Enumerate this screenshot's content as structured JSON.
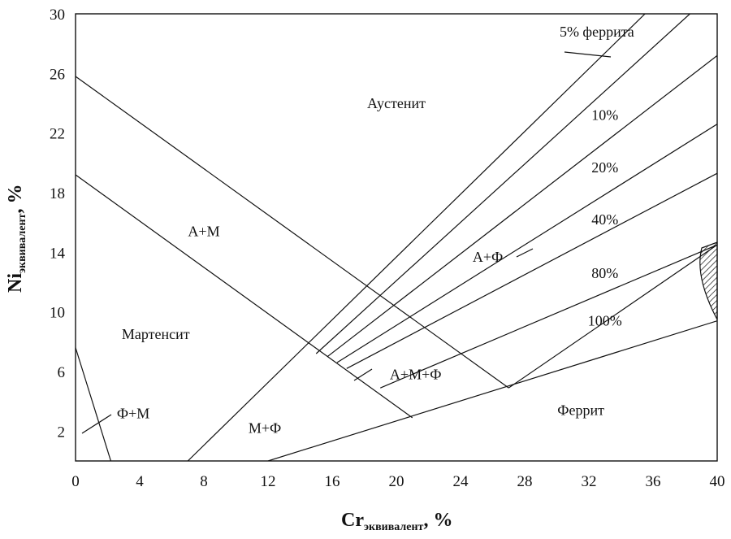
{
  "chart_data": {
    "type": "line",
    "title": "",
    "xlabel": {
      "main": "Cr",
      "sub": "эквивалент",
      "unit": ", %"
    },
    "ylabel": {
      "main": "Ni",
      "sub": "эквивалент",
      "unit": ", %"
    },
    "xlim": [
      0,
      40
    ],
    "ylim": [
      0,
      30
    ],
    "xticks": [
      "0",
      "4",
      "8",
      "12",
      "16",
      "20",
      "24",
      "28",
      "32",
      "36",
      "40"
    ],
    "yticks": [
      "2",
      "6",
      "10",
      "14",
      "18",
      "22",
      "26",
      "30"
    ],
    "grid": false,
    "boundaries": [
      {
        "name": "",
        "points": [
          [
            0,
            7.6
          ],
          [
            2.2,
            0
          ]
        ]
      },
      {
        "name": "",
        "points": [
          [
            0,
            25.8
          ],
          [
            27,
            4.9
          ]
        ]
      },
      {
        "name": "",
        "points": [
          [
            0,
            19.2
          ],
          [
            21,
            2.9
          ]
        ]
      },
      {
        "name": "",
        "points": [
          [
            7,
            0
          ],
          [
            35.5,
            30
          ]
        ]
      },
      {
        "name": "",
        "points": [
          [
            12,
            0
          ],
          [
            40,
            9.4
          ]
        ]
      },
      {
        "name": "",
        "points": [
          [
            15,
            7.2
          ],
          [
            38.3,
            30
          ]
        ]
      },
      {
        "name": "",
        "points": [
          [
            15.7,
            7
          ],
          [
            40,
            27.2
          ]
        ]
      },
      {
        "name": "",
        "points": [
          [
            16.3,
            6.6
          ],
          [
            40,
            22.6
          ]
        ]
      },
      {
        "name": "",
        "points": [
          [
            16.9,
            6.2
          ],
          [
            40,
            19.3
          ]
        ]
      },
      {
        "name": "",
        "points": [
          [
            19,
            4.9
          ],
          [
            40,
            14.5
          ]
        ]
      },
      {
        "name": "",
        "points": [
          [
            27,
            4.9
          ],
          [
            40,
            14.5
          ]
        ]
      }
    ],
    "annotations": [
      {
        "text": "5% феррита",
        "x": 32.5,
        "y": 28.8
      },
      {
        "text": "10%",
        "x": 33,
        "y": 23.2
      },
      {
        "text": "20%",
        "x": 33,
        "y": 19.7
      },
      {
        "text": "40%",
        "x": 33,
        "y": 16.2
      },
      {
        "text": "80%",
        "x": 33,
        "y": 12.6
      },
      {
        "text": "100%",
        "x": 33,
        "y": 9.4
      },
      {
        "text": "Аустенит",
        "x": 20,
        "y": 24
      },
      {
        "text": "А+М",
        "x": 8,
        "y": 15.4
      },
      {
        "text": "Мартенсит",
        "x": 5,
        "y": 8.5
      },
      {
        "text": "Ф+М",
        "x": 3.6,
        "y": 3.2
      },
      {
        "text": "М+Ф",
        "x": 11.8,
        "y": 2.2
      },
      {
        "text": "А+Ф",
        "x": 25.7,
        "y": 13.7
      },
      {
        "text": "А+М+Ф",
        "x": 21.2,
        "y": 5.8
      },
      {
        "text": "Феррит",
        "x": 31.5,
        "y": 3.4
      }
    ]
  }
}
